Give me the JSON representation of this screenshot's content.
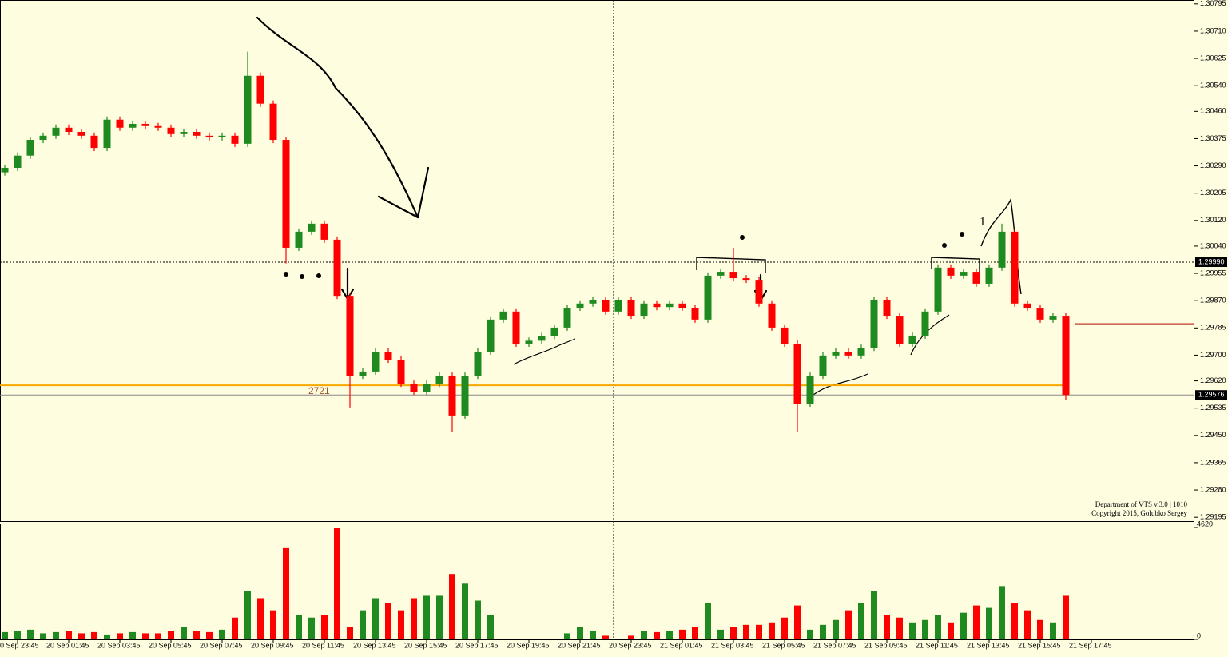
{
  "chart_data": [
    {
      "type": "candlestick",
      "categories": [
        null,
        "0 Sep 23:45",
        null,
        null,
        null,
        "20 Sep 01:45",
        null,
        null,
        null,
        "20 Sep 03:45",
        null,
        null,
        null,
        "20 Sep 05:45",
        null,
        null,
        null,
        "20 Sep 07:45",
        null,
        null,
        null,
        "20 Sep 09:45",
        null,
        null,
        null,
        "20 Sep 11:45",
        null,
        null,
        null,
        "20 Sep 13:45",
        null,
        null,
        null,
        "20 Sep 15:45",
        null,
        null,
        null,
        "20 Sep 17:45",
        null,
        null,
        null,
        "20 Sep 19:45",
        null,
        null,
        null,
        "20 Sep 21:45",
        null,
        null,
        null,
        "20 Sep 23:45",
        null,
        null,
        null,
        "21 Sep 01:45",
        null,
        null,
        null,
        "21 Sep 03:45",
        null,
        null,
        null,
        "21 Sep 05:45",
        null,
        null,
        null,
        "21 Sep 07:45",
        null,
        null,
        null,
        "21 Sep 09:45",
        null,
        null,
        null,
        "21 Sep 11:45",
        null,
        null,
        null,
        "21 Sep 13:45",
        null,
        null,
        null,
        "21 Sep 15:45",
        null,
        null,
        null,
        "21 Sep 17:45"
      ],
      "open": [
        1.3027,
        1.30284,
        1.30322,
        1.30371,
        1.30384,
        1.30409,
        1.30396,
        1.30384,
        1.30346,
        1.30434,
        1.30409,
        1.30421,
        1.30414,
        1.30409,
        1.30389,
        1.30396,
        1.30384,
        1.30379,
        1.30384,
        1.30359,
        1.30571,
        1.30484,
        1.30371,
        1.30035,
        1.30085,
        1.3011,
        1.3006,
        1.29885,
        1.29636,
        1.29649,
        1.29711,
        1.29686,
        1.29611,
        1.29586,
        1.29611,
        1.29636,
        1.29512,
        1.29636,
        1.29711,
        1.29811,
        1.29836,
        1.29736,
        1.29745,
        1.2976,
        1.29786,
        1.29848,
        1.29861,
        1.29873,
        1.29836,
        1.29873,
        1.29823,
        1.29861,
        1.2985,
        1.29861,
        1.29848,
        1.29811,
        1.29948,
        1.2996,
        1.2994,
        1.29935,
        1.29861,
        1.29786,
        1.29736,
        1.29549,
        1.29636,
        1.29699,
        1.29711,
        1.29699,
        1.29723,
        1.29873,
        1.29823,
        1.29736,
        1.29761,
        1.29836,
        1.29973,
        1.29948,
        1.2996,
        1.29923,
        1.29973,
        1.30085,
        1.29861,
        1.29848,
        1.29811,
        1.29823,
        null,
        null
      ],
      "high": [
        1.30294,
        1.30332,
        1.30381,
        1.30394,
        1.30419,
        1.30419,
        1.30406,
        1.30394,
        1.30444,
        1.30444,
        1.30431,
        1.30431,
        1.30424,
        1.30419,
        1.30406,
        1.30406,
        1.30394,
        1.30394,
        1.30394,
        1.30646,
        1.30581,
        1.30494,
        1.30381,
        1.30095,
        1.3012,
        1.3012,
        1.3007,
        1.29895,
        1.29659,
        1.29721,
        1.29721,
        1.29696,
        1.29621,
        1.29621,
        1.29646,
        1.29646,
        1.29646,
        1.29721,
        1.29821,
        1.29846,
        1.29846,
        1.29755,
        1.2977,
        1.29796,
        1.29858,
        1.29871,
        1.29883,
        1.29883,
        1.29883,
        1.29883,
        1.29871,
        1.29871,
        1.29871,
        1.29871,
        1.29858,
        1.29958,
        1.2997,
        1.30035,
        1.2995,
        1.29945,
        1.29871,
        1.29796,
        1.29746,
        1.29646,
        1.29709,
        1.29721,
        1.29721,
        1.29733,
        1.29883,
        1.29883,
        1.29833,
        1.29771,
        1.29846,
        1.29983,
        1.29983,
        1.2997,
        1.2997,
        1.29983,
        1.3011,
        1.30095,
        1.29871,
        1.29858,
        1.29833,
        1.29833,
        null,
        null
      ],
      "low": [
        1.3026,
        1.30274,
        1.30312,
        1.30361,
        1.30374,
        1.30386,
        1.30374,
        1.30336,
        1.30336,
        1.30399,
        1.30399,
        1.30404,
        1.30399,
        1.30379,
        1.30379,
        1.30374,
        1.30369,
        1.30369,
        1.30349,
        1.30349,
        1.30474,
        1.30361,
        1.29986,
        1.30025,
        1.30075,
        1.3005,
        1.29875,
        1.29537,
        1.29626,
        1.29639,
        1.29676,
        1.29601,
        1.29576,
        1.29576,
        1.29601,
        1.29462,
        1.29502,
        1.29626,
        1.29701,
        1.29801,
        1.29726,
        1.29726,
        1.29735,
        1.2975,
        1.29776,
        1.29838,
        1.29851,
        1.29826,
        1.29826,
        1.29813,
        1.29813,
        1.2984,
        1.2984,
        1.29838,
        1.29801,
        1.29801,
        1.29938,
        1.2993,
        1.29925,
        1.29851,
        1.29776,
        1.29726,
        1.29462,
        1.29539,
        1.29626,
        1.29689,
        1.29689,
        1.29689,
        1.29713,
        1.29813,
        1.29726,
        1.29726,
        1.29751,
        1.29826,
        1.29938,
        1.29938,
        1.29913,
        1.29913,
        1.29963,
        1.29851,
        1.29838,
        1.29801,
        1.29801,
        1.2956,
        null,
        null
      ],
      "close": [
        1.30284,
        1.30322,
        1.30371,
        1.30384,
        1.30409,
        1.30396,
        1.30384,
        1.30346,
        1.30434,
        1.30409,
        1.30421,
        1.30414,
        1.30409,
        1.30389,
        1.30396,
        1.30384,
        1.30379,
        1.30384,
        1.30359,
        1.30571,
        1.30484,
        1.30371,
        1.30035,
        1.30085,
        1.3011,
        1.3006,
        1.29885,
        1.29636,
        1.29649,
        1.29711,
        1.29686,
        1.29611,
        1.29586,
        1.29611,
        1.29636,
        1.29512,
        1.29636,
        1.29711,
        1.29811,
        1.29836,
        1.29736,
        1.29745,
        1.2976,
        1.29786,
        1.29848,
        1.29861,
        1.29873,
        1.29836,
        1.29873,
        1.29823,
        1.29861,
        1.2985,
        1.29861,
        1.29848,
        1.29811,
        1.29948,
        1.2996,
        1.2994,
        1.29935,
        1.29861,
        1.29786,
        1.29736,
        1.29549,
        1.29636,
        1.29699,
        1.29711,
        1.29699,
        1.29723,
        1.29873,
        1.29823,
        1.29736,
        1.29761,
        1.29836,
        1.29973,
        1.29948,
        1.2996,
        1.29923,
        1.29973,
        1.30085,
        1.29861,
        1.29848,
        1.29811,
        1.29823,
        1.29576,
        null,
        null
      ],
      "up_color": "#1f8a1f",
      "down_color": "#ff0000",
      "ylim": [
        1.29183,
        1.30807
      ],
      "yticks": [
        1.30795,
        {
          "value": 1.3071,
          "label": "1.30710"
        },
        1.30625,
        {
          "value": 1.3054,
          "label": "1.30540"
        },
        {
          "value": 1.3046,
          "label": "1.30460"
        },
        1.30375,
        {
          "value": 1.3029,
          "label": "1.30290"
        },
        1.30205,
        {
          "value": 1.3012,
          "label": "1.30120"
        },
        {
          "value": 1.3004,
          "label": "1.30040"
        },
        1.29955,
        {
          "value": 1.2987,
          "label": "1.29870"
        },
        1.29785,
        {
          "value": 1.297,
          "label": "1.29700"
        },
        {
          "value": 1.2962,
          "label": "1.29620"
        },
        1.29535,
        {
          "value": 1.2945,
          "label": "1.29450"
        },
        1.29365,
        {
          "value": 1.2928,
          "label": "1.29280"
        },
        1.29195
      ],
      "price_markers": [
        {
          "value": 1.2999,
          "label": "1.29990"
        },
        {
          "value": 1.29576,
          "label": "1.29576"
        }
      ],
      "levels": [
        {
          "value": 1.29606,
          "color": "#f5a800"
        },
        {
          "value": 1.29798,
          "color": "#c0392b"
        }
      ],
      "annotations": [
        "2721",
        "1"
      ],
      "watermark": [
        "Department of VTS  v.3.0 | 1010",
        "Copyright 2015, Golubko Sergey"
      ]
    },
    {
      "type": "bar",
      "values": [
        300,
        350,
        400,
        250,
        300,
        350,
        250,
        300,
        200,
        250,
        300,
        250,
        250,
        350,
        500,
        350,
        300,
        400,
        900,
        2000,
        1700,
        1200,
        3800,
        1000,
        900,
        1000,
        4600,
        500,
        1200,
        1700,
        1500,
        1200,
        1700,
        1800,
        1800,
        2700,
        2300,
        1600,
        1000,
        0,
        0,
        0,
        0,
        0,
        250,
        500,
        350,
        150,
        0,
        150,
        350,
        300,
        350,
        400,
        500,
        1500,
        400,
        500,
        600,
        600,
        700,
        900,
        1400,
        400,
        600,
        800,
        1200,
        1500,
        2000,
        1000,
        900,
        700,
        800,
        1000,
        700,
        1100,
        1400,
        1300,
        2200,
        1500,
        1200,
        800,
        700,
        1800,
        null,
        null
      ],
      "ylim": [
        0,
        4785
      ],
      "yticks": [
        4620,
        0
      ]
    }
  ]
}
